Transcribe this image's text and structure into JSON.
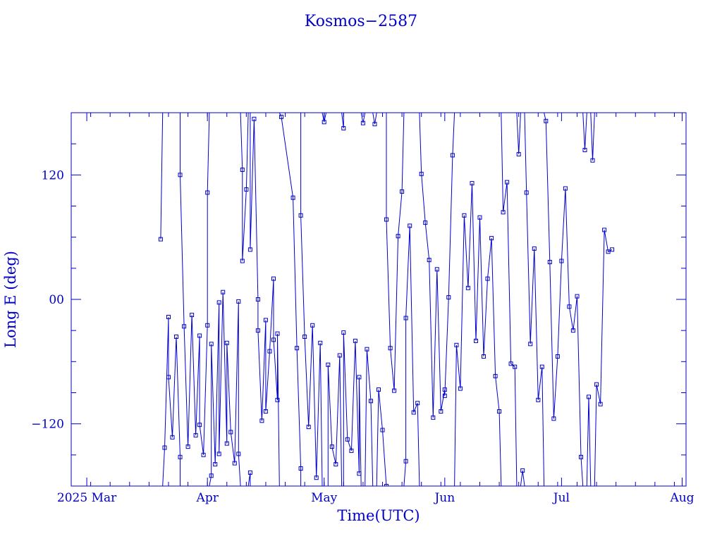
{
  "chart_data": {
    "type": "scatter",
    "title": "Kosmos−2587",
    "xlabel": "Time(UTC)",
    "ylabel": "Long E (deg)",
    "x_ticks": [
      "2025 Mar",
      "Apr",
      "May",
      "Jun",
      "Jul",
      "Aug"
    ],
    "y_ticks": [
      "120",
      "00",
      "−120"
    ],
    "x_range": [
      "2025-02-25",
      "2025-08-02"
    ],
    "ylim": [
      -180,
      180
    ],
    "grid": false,
    "marker": "open-square",
    "color": "#0000cc",
    "series": [
      {
        "points": [
          [
            "2025-03-20",
            58
          ],
          [
            "2025-03-21",
            -143
          ],
          [
            "2025-03-22",
            -17
          ],
          [
            "2025-03-22",
            -75
          ],
          [
            "2025-03-23",
            -133
          ],
          [
            "2025-03-24",
            -36
          ],
          [
            "2025-03-25",
            -152
          ],
          [
            "2025-03-25",
            120
          ],
          [
            "2025-03-26",
            -26
          ],
          [
            "2025-03-27",
            -142
          ],
          [
            "2025-03-28",
            -15
          ],
          [
            "2025-03-29",
            -131
          ],
          [
            "2025-03-30",
            -35
          ],
          [
            "2025-03-30",
            -121
          ],
          [
            "2025-03-31",
            -150
          ],
          [
            "2025-04-01",
            -25
          ],
          [
            "2025-04-01",
            103
          ],
          [
            "2025-04-02",
            -170
          ],
          [
            "2025-04-02",
            -43
          ],
          [
            "2025-04-03",
            -159
          ],
          [
            "2025-04-04",
            -3
          ],
          [
            "2025-04-04",
            -149
          ],
          [
            "2025-04-05",
            7
          ],
          [
            "2025-04-06",
            -139
          ],
          [
            "2025-04-06",
            -42
          ],
          [
            "2025-04-07",
            -128
          ],
          [
            "2025-04-08",
            -158
          ],
          [
            "2025-04-09",
            -2
          ],
          [
            "2025-04-09",
            -149
          ],
          [
            "2025-04-10",
            125
          ],
          [
            "2025-04-10",
            37
          ],
          [
            "2025-04-11",
            106
          ],
          [
            "2025-04-12",
            -167
          ],
          [
            "2025-04-12",
            48
          ],
          [
            "2025-04-13",
            174
          ],
          [
            "2025-04-14",
            0
          ],
          [
            "2025-04-14",
            -30
          ],
          [
            "2025-04-15",
            -117
          ],
          [
            "2025-04-16",
            -20
          ],
          [
            "2025-04-16",
            -108
          ],
          [
            "2025-04-17",
            -50
          ],
          [
            "2025-04-18",
            20
          ],
          [
            "2025-04-18",
            -39
          ],
          [
            "2025-04-19",
            -97
          ],
          [
            "2025-04-19",
            -33
          ],
          [
            "2025-04-20",
            176
          ],
          [
            "2025-04-23",
            98
          ],
          [
            "2025-04-24",
            -47
          ],
          [
            "2025-04-25",
            -163
          ],
          [
            "2025-04-25",
            81
          ],
          [
            "2025-04-26",
            -36
          ],
          [
            "2025-04-27",
            -123
          ],
          [
            "2025-04-28",
            -25
          ],
          [
            "2025-04-29",
            -172
          ],
          [
            "2025-04-30",
            -42
          ],
          [
            "2025-05-01",
            171
          ],
          [
            "2025-05-02",
            -186
          ],
          [
            "2025-05-02",
            -63
          ],
          [
            "2025-05-03",
            -142
          ],
          [
            "2025-05-04",
            -159
          ],
          [
            "2025-05-05",
            -54
          ],
          [
            "2025-05-06",
            165
          ],
          [
            "2025-05-06",
            -32
          ],
          [
            "2025-05-07",
            -135
          ],
          [
            "2025-05-08",
            -146
          ],
          [
            "2025-05-09",
            -40
          ],
          [
            "2025-05-10",
            -168
          ],
          [
            "2025-05-10",
            -75
          ],
          [
            "2025-05-11",
            170
          ],
          [
            "2025-05-12",
            -48
          ],
          [
            "2025-05-13",
            -98
          ],
          [
            "2025-05-14",
            169
          ],
          [
            "2025-05-15",
            -87
          ],
          [
            "2025-05-16",
            -126
          ],
          [
            "2025-05-17",
            -180
          ],
          [
            "2025-05-17",
            77
          ],
          [
            "2025-05-18",
            -47
          ],
          [
            "2025-05-19",
            -88
          ],
          [
            "2025-05-20",
            61
          ],
          [
            "2025-05-21",
            104
          ],
          [
            "2025-05-22",
            -156
          ],
          [
            "2025-05-22",
            -18
          ],
          [
            "2025-05-23",
            71
          ],
          [
            "2025-05-24",
            -109
          ],
          [
            "2025-05-25",
            -100
          ],
          [
            "2025-05-26",
            121
          ],
          [
            "2025-05-27",
            74
          ],
          [
            "2025-05-28",
            38
          ],
          [
            "2025-05-29",
            -114
          ],
          [
            "2025-05-30",
            29
          ],
          [
            "2025-05-31",
            -108
          ],
          [
            "2025-06-01",
            -87
          ],
          [
            "2025-06-01",
            -93
          ],
          [
            "2025-06-02",
            2
          ],
          [
            "2025-06-03",
            139
          ],
          [
            "2025-06-04",
            -44
          ],
          [
            "2025-06-05",
            -86
          ],
          [
            "2025-06-06",
            81
          ],
          [
            "2025-06-07",
            11
          ],
          [
            "2025-06-08",
            112
          ],
          [
            "2025-06-09",
            -40
          ],
          [
            "2025-06-10",
            79
          ],
          [
            "2025-06-11",
            -55
          ],
          [
            "2025-06-12",
            20
          ],
          [
            "2025-06-13",
            59
          ],
          [
            "2025-06-14",
            -74
          ],
          [
            "2025-06-15",
            -108
          ],
          [
            "2025-06-16",
            84
          ],
          [
            "2025-06-17",
            113
          ],
          [
            "2025-06-18",
            -62
          ],
          [
            "2025-06-19",
            -65
          ],
          [
            "2025-06-20",
            140
          ],
          [
            "2025-06-21",
            -165
          ],
          [
            "2025-06-22",
            103
          ],
          [
            "2025-06-23",
            -43
          ],
          [
            "2025-06-24",
            49
          ],
          [
            "2025-06-25",
            -97
          ],
          [
            "2025-06-26",
            -65
          ],
          [
            "2025-06-27",
            172
          ],
          [
            "2025-06-28",
            36
          ],
          [
            "2025-06-29",
            -115
          ],
          [
            "2025-06-30",
            -55
          ],
          [
            "2025-07-01",
            37
          ],
          [
            "2025-07-02",
            107
          ],
          [
            "2025-07-03",
            -7
          ],
          [
            "2025-07-04",
            -30
          ],
          [
            "2025-07-05",
            3
          ],
          [
            "2025-07-06",
            -152
          ],
          [
            "2025-07-07",
            144
          ],
          [
            "2025-07-08",
            -94
          ],
          [
            "2025-07-09",
            134
          ],
          [
            "2025-07-10",
            -82
          ],
          [
            "2025-07-11",
            -101
          ],
          [
            "2025-07-12",
            67
          ],
          [
            "2025-07-13",
            46
          ],
          [
            "2025-07-14",
            48
          ]
        ]
      }
    ]
  }
}
